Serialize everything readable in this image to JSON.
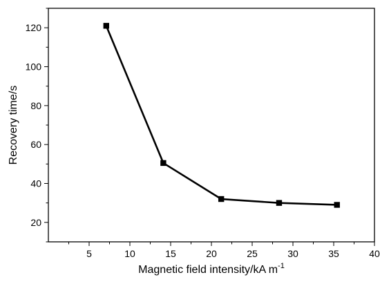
{
  "chart_data": {
    "type": "line",
    "xlabel": "Magnetic field intensity/kA m",
    "xlabel_superscript": "-1",
    "ylabel": "Recovery time/s",
    "xlim": [
      0,
      40
    ],
    "ylim": [
      10,
      130
    ],
    "x_ticks": [
      "5",
      "10",
      "15",
      "20",
      "25",
      "30",
      "35",
      "40"
    ],
    "y_ticks": [
      "20",
      "40",
      "60",
      "80",
      "100",
      "120"
    ],
    "grid": false,
    "series": [
      {
        "marker": "square",
        "color": "#000000",
        "x": [
          7.1,
          14.1,
          21.2,
          28.3,
          35.4
        ],
        "y": [
          121,
          50.5,
          32,
          30,
          29
        ]
      }
    ]
  }
}
